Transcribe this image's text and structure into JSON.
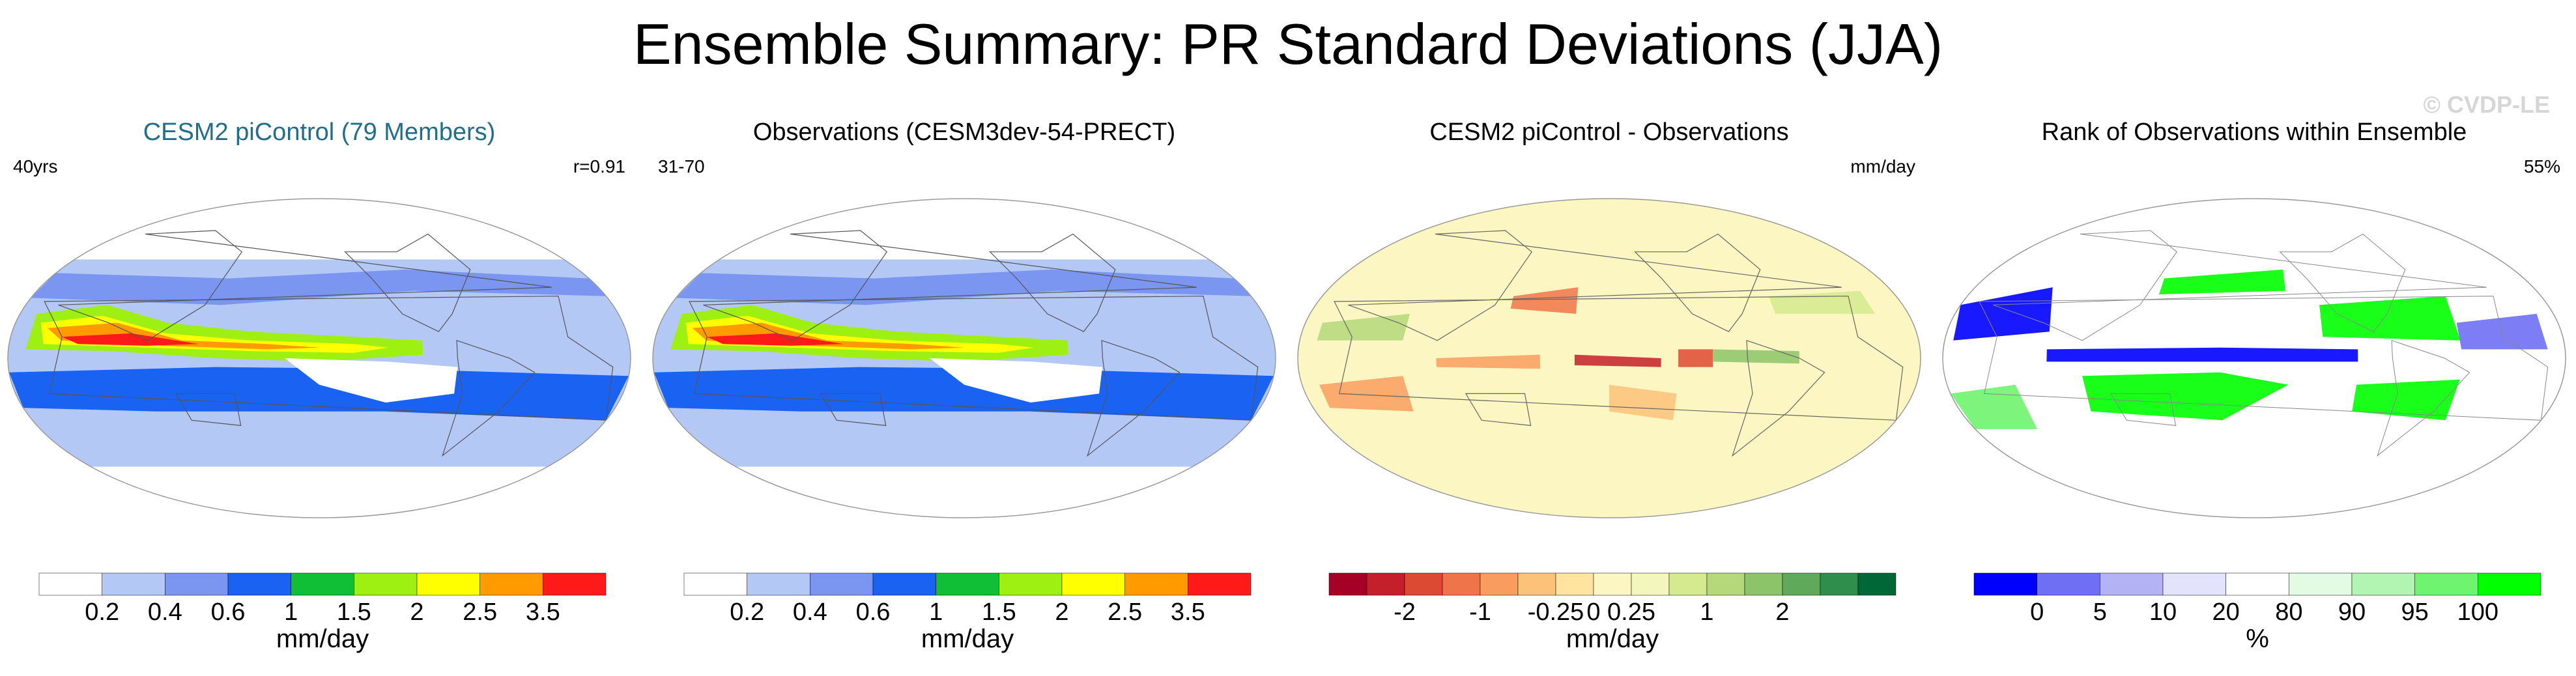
{
  "title": "Ensemble Summary: PR Standard Deviations (JJA)",
  "watermark": "© CVDP-LE",
  "chart_data": [
    {
      "type": "heatmap",
      "title": "CESM2 piControl (79 Members)",
      "title_color": "#1f6e8a",
      "left_label": "40yrs",
      "right_label": "r=0.91",
      "colorbar_label": "mm/day",
      "colorbar_ticks": [
        "0.2",
        "0.4",
        "0.6",
        "1",
        "1.5",
        "2",
        "2.5",
        "3.5"
      ],
      "levels": [
        0.2,
        0.4,
        0.6,
        1,
        1.5,
        2,
        2.5,
        3.5
      ],
      "colors": [
        "#ffffff",
        "#b4c8f5",
        "#7b96f0",
        "#1a62f2",
        "#11bf36",
        "#9ef012",
        "#ffff00",
        "#ff9a00",
        "#ff1a1a"
      ],
      "map_features": [
        "tropical-band",
        "itcz-core",
        "warm-pool"
      ]
    },
    {
      "type": "heatmap",
      "title": "Observations (CESM3dev-54-PRECT)",
      "title_color": "#000000",
      "left_label": "31-70",
      "right_label": "",
      "colorbar_label": "mm/day",
      "colorbar_ticks": [
        "0.2",
        "0.4",
        "0.6",
        "1",
        "1.5",
        "2",
        "2.5",
        "3.5"
      ],
      "levels": [
        0.2,
        0.4,
        0.6,
        1,
        1.5,
        2,
        2.5,
        3.5
      ],
      "colors": [
        "#ffffff",
        "#b4c8f5",
        "#7b96f0",
        "#1a62f2",
        "#11bf36",
        "#9ef012",
        "#ffff00",
        "#ff9a00",
        "#ff1a1a"
      ],
      "map_features": [
        "tropical-band",
        "itcz-core",
        "warm-pool"
      ]
    },
    {
      "type": "heatmap",
      "title": "CESM2 piControl - Observations",
      "title_color": "#000000",
      "left_label": "",
      "right_label": "mm/day",
      "colorbar_label": "mm/day",
      "colorbar_ticks": [
        "-2",
        "-1",
        "-0.25",
        "0",
        "0.25",
        "1",
        "2"
      ],
      "levels": [
        -3,
        -2,
        -1.5,
        -1,
        -0.5,
        -0.25,
        0,
        0.25,
        0.5,
        1,
        1.5,
        2,
        3
      ],
      "colors": [
        "#a50026",
        "#c3202c",
        "#dd4a33",
        "#f0744a",
        "#f99d5e",
        "#fcc27a",
        "#fee49e",
        "#fbf6c2",
        "#f3f7bc",
        "#d5ea8e",
        "#b4d87a",
        "#8cc46a",
        "#5fa95a",
        "#2f8e4c",
        "#006837"
      ],
      "map_features": [
        "difference-field"
      ]
    },
    {
      "type": "heatmap",
      "title": "Rank of Observations within Ensemble",
      "title_color": "#000000",
      "left_label": "",
      "right_label": "55%",
      "colorbar_label": "%",
      "colorbar_ticks": [
        "0",
        "5",
        "10",
        "20",
        "80",
        "90",
        "95",
        "100"
      ],
      "levels": [
        0,
        5,
        10,
        20,
        80,
        90,
        95,
        100
      ],
      "colors": [
        "#0000ff",
        "#6f6ff4",
        "#b2b2f4",
        "#e3e3fb",
        "#ffffff",
        "#e3fbe3",
        "#b2f4b2",
        "#6ff46f",
        "#00ff00"
      ],
      "map_features": [
        "rank-field"
      ]
    }
  ]
}
